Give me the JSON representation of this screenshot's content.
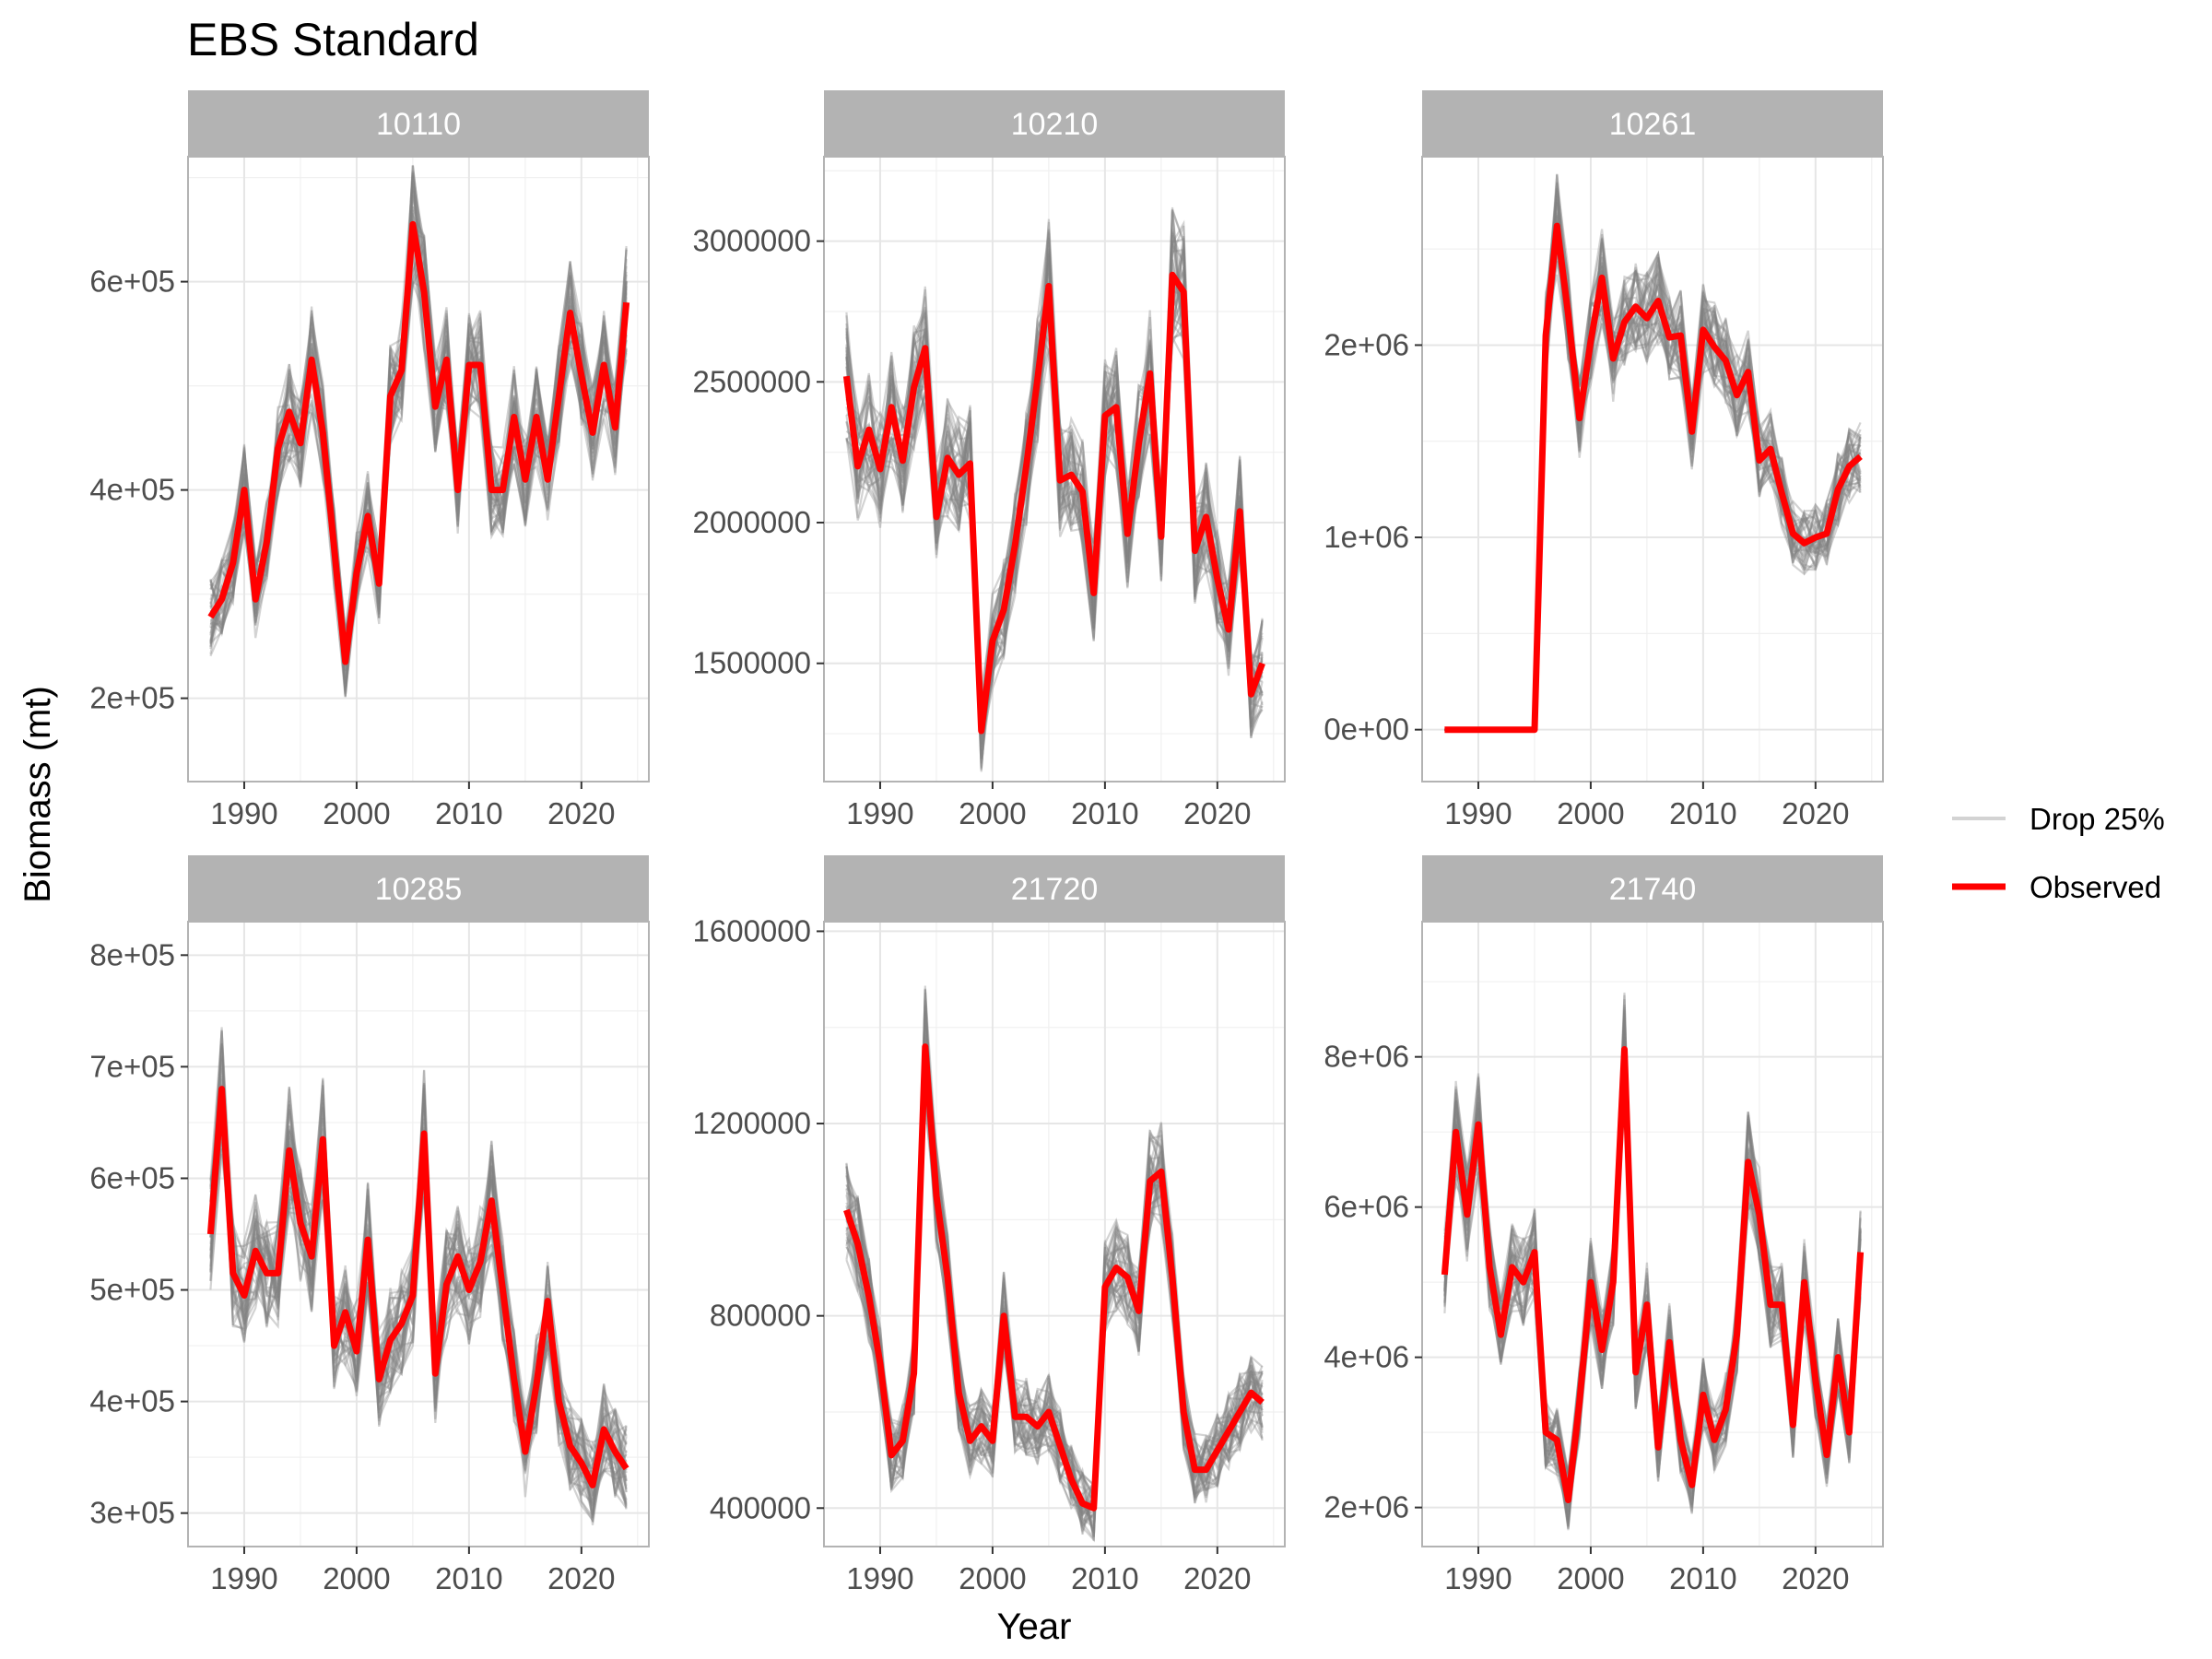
{
  "chart_data": {
    "type": "line",
    "title": "EBS Standard",
    "xlabel": "Year",
    "ylabel": "Biomass (mt)",
    "legend": {
      "placement": "right",
      "items": [
        {
          "label": "Drop 25%",
          "color": "#d3d3d3"
        },
        {
          "label": "Observed",
          "color": "#ff0000"
        }
      ]
    },
    "colors": {
      "observed": "#ff0000",
      "drop": "#808080",
      "strip": "#b3b3b3",
      "grid": "#e6e6e6",
      "panel_border": "#b3b3b3"
    },
    "panels": [
      {
        "label": "10110",
        "xlim": [
          1985,
          2026
        ],
        "ylim": [
          120000,
          720000
        ],
        "xticks": [
          1990,
          2000,
          2010,
          2020
        ],
        "xtick_labels": [
          "1990",
          "2000",
          "2010",
          "2020"
        ],
        "yticks": [
          200000,
          400000,
          600000
        ],
        "ytick_labels": [
          "2e+05",
          "4e+05",
          "6e+05"
        ],
        "x": [
          1987,
          1988,
          1989,
          1990,
          1991,
          1992,
          1993,
          1994,
          1995,
          1996,
          1997,
          1998,
          1999,
          2000,
          2001,
          2002,
          2003,
          2004,
          2005,
          2006,
          2007,
          2008,
          2009,
          2010,
          2011,
          2012,
          2013,
          2014,
          2015,
          2016,
          2017,
          2018,
          2019,
          2020,
          2021,
          2022,
          2023,
          2024
        ],
        "observed": [
          278000,
          295000,
          330000,
          400000,
          295000,
          350000,
          440000,
          475000,
          445000,
          525000,
          455000,
          345000,
          235000,
          320000,
          375000,
          310000,
          490000,
          515000,
          655000,
          590000,
          480000,
          525000,
          400000,
          520000,
          520000,
          400000,
          400000,
          470000,
          410000,
          470000,
          410000,
          490000,
          570000,
          510000,
          455000,
          520000,
          460000,
          580000
        ]
      },
      {
        "label": "10210",
        "xlim": [
          1985,
          2026
        ],
        "ylim": [
          1080000,
          3300000
        ],
        "xticks": [
          1990,
          2000,
          2010,
          2020
        ],
        "xtick_labels": [
          "1990",
          "2000",
          "2010",
          "2020"
        ],
        "yticks": [
          1500000,
          2000000,
          2500000,
          3000000
        ],
        "ytick_labels": [
          "1500000",
          "2000000",
          "2500000",
          "3000000"
        ],
        "x": [
          1987,
          1988,
          1989,
          1990,
          1991,
          1992,
          1993,
          1994,
          1995,
          1996,
          1997,
          1998,
          1999,
          2000,
          2001,
          2002,
          2003,
          2004,
          2005,
          2006,
          2007,
          2008,
          2009,
          2010,
          2011,
          2012,
          2013,
          2014,
          2015,
          2016,
          2017,
          2018,
          2019,
          2020,
          2021,
          2022,
          2023,
          2024
        ],
        "observed": [
          2520000,
          2200000,
          2330000,
          2190000,
          2410000,
          2220000,
          2480000,
          2620000,
          2020000,
          2230000,
          2170000,
          2210000,
          1260000,
          1580000,
          1690000,
          1920000,
          2200000,
          2510000,
          2840000,
          2150000,
          2170000,
          2110000,
          1750000,
          2380000,
          2410000,
          1960000,
          2280000,
          2530000,
          1950000,
          2880000,
          2820000,
          1900000,
          2020000,
          1800000,
          1620000,
          2040000,
          1390000,
          1500000
        ]
      },
      {
        "label": "10261",
        "xlim": [
          1985,
          2026
        ],
        "ylim": [
          -270000,
          2980000
        ],
        "xticks": [
          1990,
          2000,
          2010,
          2020
        ],
        "xtick_labels": [
          "1990",
          "2000",
          "2010",
          "2020"
        ],
        "yticks": [
          0,
          1000000,
          2000000
        ],
        "ytick_labels": [
          "0e+00",
          "1e+06",
          "2e+06"
        ],
        "x": [
          1987,
          1988,
          1989,
          1990,
          1991,
          1992,
          1993,
          1994,
          1995,
          1996,
          1997,
          1998,
          1999,
          2000,
          2001,
          2002,
          2003,
          2004,
          2005,
          2006,
          2007,
          2008,
          2009,
          2010,
          2011,
          2012,
          2013,
          2014,
          2015,
          2016,
          2017,
          2018,
          2019,
          2020,
          2021,
          2022,
          2023,
          2024
        ],
        "observed": [
          0,
          0,
          0,
          0,
          0,
          0,
          0,
          0,
          0,
          2050000,
          2620000,
          2160000,
          1620000,
          2020000,
          2350000,
          1930000,
          2120000,
          2200000,
          2140000,
          2230000,
          2040000,
          2050000,
          1550000,
          2080000,
          1990000,
          1920000,
          1740000,
          1860000,
          1400000,
          1460000,
          1230000,
          1020000,
          970000,
          1000000,
          1020000,
          1250000,
          1370000,
          1420000
        ]
      },
      {
        "label": "10285",
        "xlim": [
          1985,
          2026
        ],
        "ylim": [
          270000,
          830000
        ],
        "xticks": [
          1990,
          2000,
          2010,
          2020
        ],
        "xtick_labels": [
          "1990",
          "2000",
          "2010",
          "2020"
        ],
        "yticks": [
          300000,
          400000,
          500000,
          600000,
          700000,
          800000
        ],
        "ytick_labels": [
          "3e+05",
          "4e+05",
          "5e+05",
          "6e+05",
          "7e+05",
          "8e+05"
        ],
        "x": [
          1987,
          1988,
          1989,
          1990,
          1991,
          1992,
          1993,
          1994,
          1995,
          1996,
          1997,
          1998,
          1999,
          2000,
          2001,
          2002,
          2003,
          2004,
          2005,
          2006,
          2007,
          2008,
          2009,
          2010,
          2011,
          2012,
          2013,
          2014,
          2015,
          2016,
          2017,
          2018,
          2019,
          2020,
          2021,
          2022,
          2023,
          2024
        ],
        "observed": [
          550000,
          680000,
          515000,
          495000,
          535000,
          515000,
          515000,
          625000,
          560000,
          530000,
          635000,
          450000,
          480000,
          445000,
          545000,
          420000,
          455000,
          470000,
          495000,
          640000,
          425000,
          505000,
          530000,
          500000,
          525000,
          580000,
          500000,
          420000,
          355000,
          415000,
          490000,
          400000,
          360000,
          345000,
          325000,
          375000,
          355000,
          340000
        ]
      },
      {
        "label": "21720",
        "xlim": [
          1985,
          2026
        ],
        "ylim": [
          320000,
          1620000
        ],
        "xticks": [
          1990,
          2000,
          2010,
          2020
        ],
        "xtick_labels": [
          "1990",
          "2000",
          "2010",
          "2020"
        ],
        "yticks": [
          400000,
          800000,
          1200000,
          1600000
        ],
        "ytick_labels": [
          "400000",
          "800000",
          "1200000",
          "1600000"
        ],
        "x": [
          1987,
          1988,
          1989,
          1990,
          1991,
          1992,
          1993,
          1994,
          1995,
          1996,
          1997,
          1998,
          1999,
          2000,
          2001,
          2002,
          2003,
          2004,
          2005,
          2006,
          2007,
          2008,
          2009,
          2010,
          2011,
          2012,
          2013,
          2014,
          2015,
          2016,
          2017,
          2018,
          2019,
          2020,
          2021,
          2022,
          2023,
          2024
        ],
        "observed": [
          1020000,
          950000,
          840000,
          700000,
          510000,
          540000,
          680000,
          1360000,
          1050000,
          880000,
          640000,
          540000,
          570000,
          540000,
          800000,
          590000,
          590000,
          570000,
          600000,
          530000,
          460000,
          410000,
          400000,
          860000,
          900000,
          880000,
          810000,
          1080000,
          1100000,
          880000,
          600000,
          480000,
          480000,
          520000,
          560000,
          600000,
          640000,
          620000
        ]
      },
      {
        "label": "21740",
        "xlim": [
          1985,
          2026
        ],
        "ylim": [
          1480000,
          9800000
        ],
        "xticks": [
          1990,
          2000,
          2010,
          2020
        ],
        "xtick_labels": [
          "1990",
          "2000",
          "2010",
          "2020"
        ],
        "yticks": [
          2000000,
          4000000,
          6000000,
          8000000
        ],
        "ytick_labels": [
          "2e+06",
          "4e+06",
          "6e+06",
          "8e+06"
        ],
        "x": [
          1987,
          1988,
          1989,
          1990,
          1991,
          1992,
          1993,
          1994,
          1995,
          1996,
          1997,
          1998,
          1999,
          2000,
          2001,
          2002,
          2003,
          2004,
          2005,
          2006,
          2007,
          2008,
          2009,
          2010,
          2011,
          2012,
          2013,
          2014,
          2015,
          2016,
          2017,
          2018,
          2019,
          2020,
          2021,
          2022,
          2023,
          2024
        ],
        "observed": [
          5100000,
          7000000,
          5900000,
          7100000,
          5200000,
          4300000,
          5200000,
          5000000,
          5400000,
          3000000,
          2900000,
          2100000,
          3400000,
          5000000,
          4100000,
          5000000,
          8100000,
          3800000,
          4700000,
          2800000,
          4200000,
          2900000,
          2300000,
          3500000,
          2900000,
          3300000,
          4300000,
          6600000,
          5900000,
          4700000,
          4700000,
          3100000,
          5000000,
          3700000,
          2700000,
          4000000,
          3000000,
          5400000
        ]
      }
    ]
  }
}
